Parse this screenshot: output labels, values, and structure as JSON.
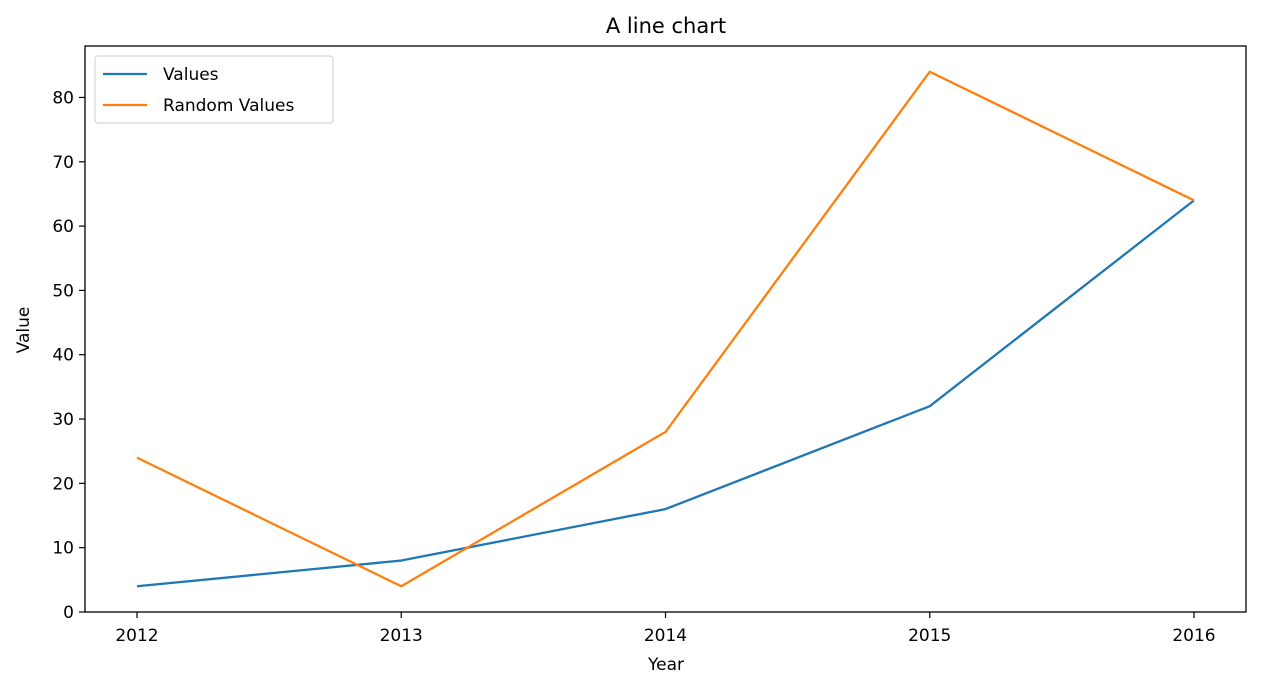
{
  "chart_data": {
    "type": "line",
    "title": "A line chart",
    "xlabel": "Year",
    "ylabel": "Value",
    "categories": [
      "2012",
      "2013",
      "2014",
      "2015",
      "2016"
    ],
    "series": [
      {
        "name": "Values",
        "values": [
          4,
          8,
          16,
          32,
          64
        ],
        "color": "#1f77b4"
      },
      {
        "name": "Random Values",
        "values": [
          24,
          4,
          28,
          84,
          64
        ],
        "color": "#ff7f0e"
      }
    ],
    "ylim": [
      0,
      88
    ],
    "y_ticks": [
      0,
      10,
      20,
      30,
      40,
      50,
      60,
      70,
      80
    ],
    "grid": false,
    "legend_position": "upper left"
  }
}
